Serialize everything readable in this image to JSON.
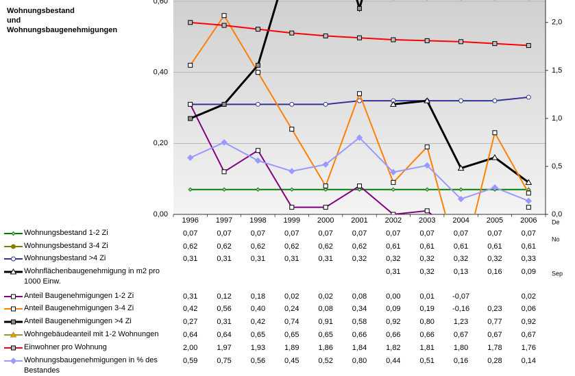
{
  "chart_data": {
    "type": "line",
    "title": "Wohnungsbestand und Wohnungsbaugenehmigungen",
    "categories": [
      "1996",
      "1997",
      "1998",
      "1999",
      "2000",
      "2001",
      "2002",
      "2003",
      "2004",
      "2005",
      "2006"
    ],
    "ylim": [
      0,
      0.6
    ],
    "yticks": [
      {
        "value": 0,
        "label": "0,00"
      },
      {
        "value": 0.2,
        "label": "0,20"
      },
      {
        "value": 0.4,
        "label": "0,40"
      },
      {
        "value": 0.6,
        "label": "0,60"
      }
    ],
    "y2lim": [
      0,
      2.22
    ],
    "y2ticks": [
      {
        "value": 0,
        "label": "0,0"
      },
      {
        "value": 0.5,
        "label": "0,5"
      },
      {
        "value": 1,
        "label": "1,0"
      },
      {
        "value": 1.5,
        "label": "1,5"
      },
      {
        "value": 2,
        "label": "2,0"
      }
    ],
    "grid": true,
    "clipped_labels": [
      "De",
      "No",
      "Sep"
    ],
    "series": [
      {
        "name": "Wohnungsbestand 1-2 Zi",
        "color": "#008000",
        "marker": "diamond",
        "marker_fill": "#c0c0c0",
        "values": [
          0.07,
          0.07,
          0.07,
          0.07,
          0.07,
          0.07,
          0.07,
          0.07,
          0.07,
          0.07,
          0.07
        ],
        "value_labels": [
          "0,07",
          "0,07",
          "0,07",
          "0,07",
          "0,07",
          "0,07",
          "0,07",
          "0,07",
          "0,07",
          "0,07",
          "0,07"
        ]
      },
      {
        "name": "Wohnungsbestand 3-4 Zi",
        "color": "#808000",
        "marker": "circle",
        "marker_fill": "#808000",
        "values": [
          0.62,
          0.62,
          0.62,
          0.62,
          0.62,
          0.62,
          0.61,
          0.61,
          0.61,
          0.61,
          0.61
        ],
        "value_labels": [
          "0,62",
          "0,62",
          "0,62",
          "0,62",
          "0,62",
          "0,62",
          "0,61",
          "0,61",
          "0,61",
          "0,61",
          "0,61"
        ]
      },
      {
        "name": "Wohnungsbestand >4 Zi",
        "color": "#333399",
        "marker": "circle",
        "marker_fill": "#ffffff",
        "values": [
          0.31,
          0.31,
          0.31,
          0.31,
          0.31,
          0.32,
          0.32,
          0.32,
          0.32,
          0.32,
          0.33
        ],
        "value_labels": [
          "0,31",
          "0,31",
          "0,31",
          "0,31",
          "0,31",
          "0,32",
          "0,32",
          "0,32",
          "0,32",
          "0,32",
          "0,33"
        ]
      },
      {
        "name": "Wohnflächenbaugenehmigung in m2 pro 1000 Einw.",
        "color": "#000000",
        "marker": "triangle",
        "marker_fill": "#ffffff",
        "values": [
          null,
          null,
          null,
          null,
          null,
          null,
          0.31,
          0.32,
          0.13,
          0.16,
          0.09
        ],
        "value_labels": [
          null,
          null,
          null,
          null,
          null,
          null,
          "0,31",
          "0,32",
          "0,13",
          "0,16",
          "0,09"
        ]
      },
      {
        "name": "Anteil Baugenehmigungen 1-2 Zi",
        "color": "#800080",
        "marker": "square",
        "marker_fill": "#ffffff",
        "values": [
          0.31,
          0.12,
          0.18,
          0.02,
          0.02,
          0.08,
          0.0,
          0.01,
          -0.07,
          null,
          0.02
        ],
        "value_labels": [
          "0,31",
          "0,12",
          "0,18",
          "0,02",
          "0,02",
          "0,08",
          "0,00",
          "0,01",
          "-0,07",
          null,
          "0,02"
        ]
      },
      {
        "name": "Anteil Baugenehmigungen 3-4 Zi",
        "color": "#ff8000",
        "marker": "square",
        "marker_fill": "#ffffff",
        "values": [
          0.42,
          0.56,
          0.4,
          0.24,
          0.08,
          0.34,
          0.09,
          0.19,
          -0.16,
          0.23,
          0.06
        ],
        "value_labels": [
          "0,42",
          "0,56",
          "0,40",
          "0,24",
          "0,08",
          "0,34",
          "0,09",
          "0,19",
          "-0,16",
          "0,23",
          "0,06"
        ]
      },
      {
        "name": "Anteil Baugenehmigungen >4 Zi",
        "color": "#000000",
        "marker": "square",
        "marker_fill": "#909090",
        "values": [
          0.27,
          0.31,
          0.42,
          0.74,
          0.91,
          0.58,
          0.92,
          0.8,
          1.23,
          0.77,
          0.92
        ],
        "value_labels": [
          "0,27",
          "0,31",
          "0,42",
          "0,74",
          "0,91",
          "0,58",
          "0,92",
          "0,80",
          "1,23",
          "0,77",
          "0,92"
        ]
      },
      {
        "name": "Wohngebäudeanteil mit 1-2 Wohnungen",
        "color": "#999933",
        "marker": "triangle",
        "marker_fill": "#ff9900",
        "values": [
          0.64,
          0.64,
          0.65,
          0.65,
          0.65,
          0.66,
          0.66,
          0.66,
          0.67,
          0.67,
          0.67
        ],
        "value_labels": [
          "0,64",
          "0,64",
          "0,65",
          "0,65",
          "0,65",
          "0,66",
          "0,66",
          "0,66",
          "0,67",
          "0,67",
          "0,67"
        ]
      },
      {
        "name": "Einwohner pro Wohnung",
        "color": "#ff0000",
        "marker": "square",
        "marker_fill": "#c0c0c0",
        "axis": "y2",
        "values": [
          2.0,
          1.97,
          1.93,
          1.89,
          1.86,
          1.84,
          1.82,
          1.81,
          1.8,
          1.78,
          1.76
        ],
        "value_labels": [
          "2,00",
          "1,97",
          "1,93",
          "1,89",
          "1,86",
          "1,84",
          "1,82",
          "1,81",
          "1,80",
          "1,78",
          "1,76"
        ]
      },
      {
        "name": "Wohnungsbaugenehmigungen in % des Bestandes",
        "color": "#9999ff",
        "marker": "diamond",
        "marker_fill": "#9999ff",
        "axis": "y2",
        "values": [
          0.59,
          0.75,
          0.56,
          0.45,
          0.52,
          0.8,
          0.44,
          0.51,
          0.16,
          0.28,
          0.14
        ],
        "value_labels": [
          "0,59",
          "0,75",
          "0,56",
          "0,45",
          "0,52",
          "0,80",
          "0,44",
          "0,51",
          "0,16",
          "0,28",
          "0,14"
        ]
      }
    ]
  }
}
